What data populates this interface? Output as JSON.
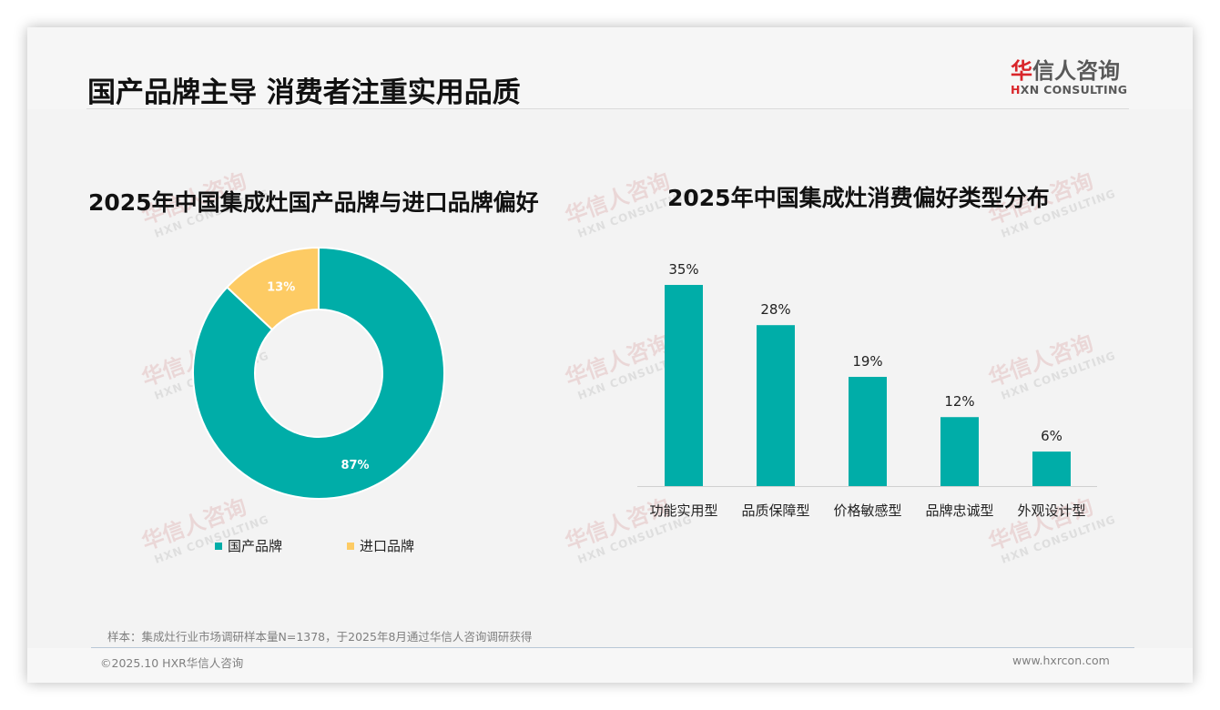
{
  "header": {
    "title": "国产品牌主导 消费者注重实用品质",
    "logo": {
      "hua": "华",
      "rest_cn": "信人咨询",
      "en_mark": "H",
      "en_rest": "XN CONSULTING"
    }
  },
  "watermark": {
    "cn": "华信人咨询",
    "en": "HXN CONSULTING"
  },
  "left_chart": {
    "title": "2025年中国集成灶国产品牌与进口品牌偏好",
    "legend": [
      {
        "label": "国产品牌",
        "color": "#00ada8"
      },
      {
        "label": "进口品牌",
        "color": "#fdcb64"
      }
    ]
  },
  "right_chart": {
    "title": "2025年中国集成灶消费偏好类型分布"
  },
  "chart_data": [
    {
      "type": "pie",
      "variant": "donut",
      "title": "2025年中国集成灶国产品牌与进口品牌偏好",
      "categories": [
        "国产品牌",
        "进口品牌"
      ],
      "values": [
        87,
        13
      ],
      "labels": [
        "87%",
        "13%"
      ],
      "colors": [
        "#00ada8",
        "#fdcb64"
      ],
      "legend_position": "bottom"
    },
    {
      "type": "bar",
      "title": "2025年中国集成灶消费偏好类型分布",
      "categories": [
        "功能实用型",
        "品质保障型",
        "价格敏感型",
        "品牌忠诚型",
        "外观设计型"
      ],
      "values": [
        35,
        28,
        19,
        12,
        6
      ],
      "labels": [
        "35%",
        "28%",
        "19%",
        "12%",
        "6%"
      ],
      "color": "#00ada8",
      "xlabel": "",
      "ylabel": "",
      "ylim": [
        0,
        35
      ],
      "grid": false
    }
  ],
  "footer": {
    "sample_note": "样本：集成灶行业市场调研样本量N=1378，于2025年8月通过华信人咨询调研获得",
    "copyright": "©2025.10 HXR华信人咨询",
    "website": "www.hxrcon.com"
  }
}
